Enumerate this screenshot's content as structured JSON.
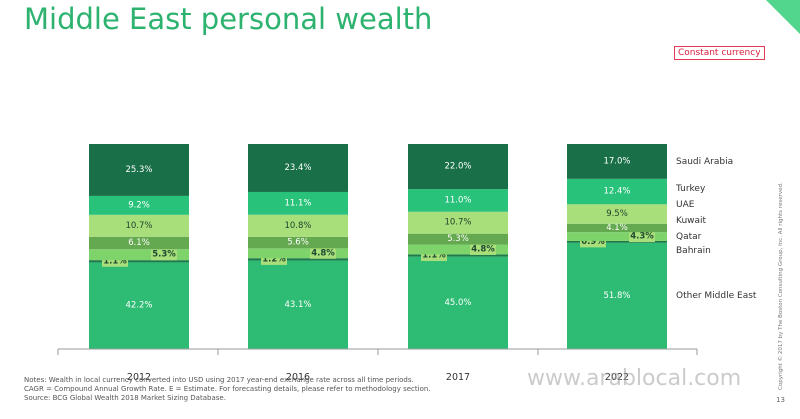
{
  "header": {
    "title": "Middle East personal wealth",
    "badge": "Constant currency"
  },
  "chart_data": {
    "type": "bar",
    "stacked": true,
    "normalized": true,
    "categories": [
      "2012",
      "2016",
      "2017",
      "2022"
    ],
    "series": [
      {
        "name": "Other Middle East",
        "color": "#2ebc74",
        "values": [
          42.2,
          43.1,
          45.0,
          51.8
        ],
        "labels": [
          "42.2%",
          "43.1%",
          "45.0%",
          "51.8%"
        ]
      },
      {
        "name": "Bahrain",
        "color": "#1c7a4b",
        "values": [
          1.1,
          1.2,
          1.1,
          0.9
        ],
        "labels": [
          "1.1%",
          "1.2%",
          "1.1%",
          "0.9%"
        ]
      },
      {
        "name": "Qatar",
        "color": "#7ed36b",
        "values": [
          5.3,
          4.8,
          4.8,
          4.3
        ],
        "labels": [
          "5.3%",
          "4.8%",
          "4.8%",
          "4.3%"
        ]
      },
      {
        "name": "Kuwait",
        "color": "#64a84f",
        "values": [
          6.1,
          5.6,
          5.3,
          4.1
        ],
        "labels": [
          "6.1%",
          "5.6%",
          "5.3%",
          "4.1%"
        ]
      },
      {
        "name": "UAE",
        "color": "#a9df7a",
        "values": [
          10.7,
          10.8,
          10.7,
          9.5
        ],
        "labels": [
          "10.7%",
          "10.8%",
          "10.7%",
          "9.5%"
        ]
      },
      {
        "name": "Turkey",
        "color": "#28c27a",
        "values": [
          9.2,
          11.1,
          11.0,
          12.4
        ],
        "labels": [
          "9.2%",
          "11.1%",
          "11.0%",
          "12.4%"
        ]
      },
      {
        "name": "Saudi Arabia",
        "color": "#197048",
        "values": [
          25.3,
          23.4,
          22.0,
          17.0
        ],
        "labels": [
          "25.3%",
          "23.4%",
          "22.0%",
          "17.0%"
        ]
      }
    ],
    "legend_position": "right"
  },
  "footer": {
    "notes": [
      "Notes: Wealth in local currency converted into USD using 2017 year-end exchange rate across all time periods.",
      "CAGR = Compound Annual Growth Rate. E = Estimate. For forecasting details, please refer to methodology section.",
      "Source: BCG Global Wealth 2018 Market Sizing Database."
    ],
    "page_number": "13",
    "copyright": "Copyright © 2017 by The Boston Consulting Group, Inc. All rights reserved."
  },
  "watermark": "www.arablocal.com"
}
